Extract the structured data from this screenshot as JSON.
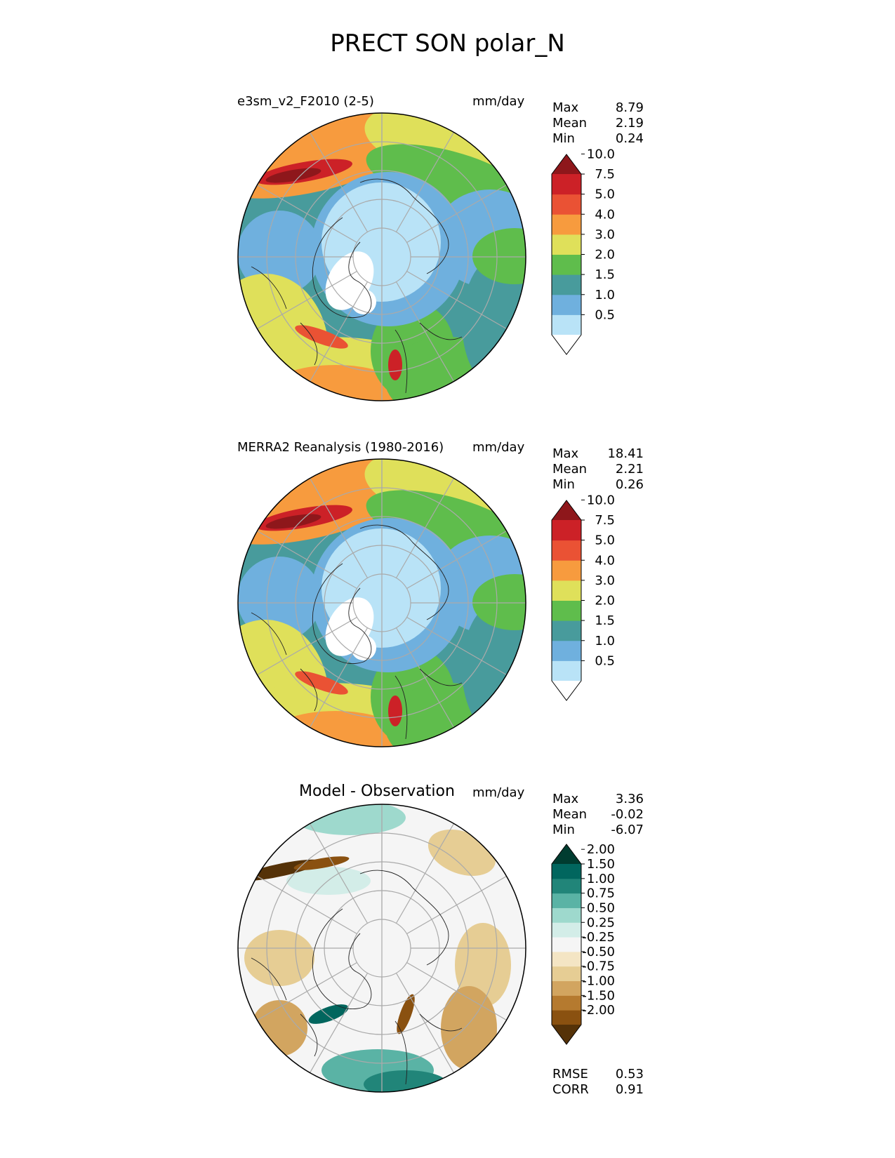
{
  "title": "PRECT SON polar_N",
  "panels": [
    {
      "id": "test",
      "label": "e3sm_v2_F2010 (2-5)",
      "units": "mm/day",
      "stats": [
        {
          "name": "Max",
          "value": "8.79"
        },
        {
          "name": "Mean",
          "value": "2.19"
        },
        {
          "name": "Min",
          "value": "0.24"
        }
      ],
      "colorbar": {
        "colors": [
          "#ffffff",
          "#b9e3f7",
          "#6fb0de",
          "#489b9c",
          "#5fbd4c",
          "#dfe05a",
          "#f79b3e",
          "#ea5234",
          "#cc2127",
          "#8e171b"
        ],
        "ticks": [
          "0.5",
          "1.0",
          "1.5",
          "2.0",
          "3.0",
          "4.0",
          "5.0",
          "7.5",
          "10.0"
        ]
      }
    },
    {
      "id": "ref",
      "label": "MERRA2 Reanalysis (1980-2016)",
      "units": "mm/day",
      "stats": [
        {
          "name": "Max",
          "value": "18.41"
        },
        {
          "name": "Mean",
          "value": "2.21"
        },
        {
          "name": "Min",
          "value": "0.26"
        }
      ],
      "colorbar": {
        "colors": [
          "#ffffff",
          "#b9e3f7",
          "#6fb0de",
          "#489b9c",
          "#5fbd4c",
          "#dfe05a",
          "#f79b3e",
          "#ea5234",
          "#cc2127",
          "#8e171b"
        ],
        "ticks": [
          "0.5",
          "1.0",
          "1.5",
          "2.0",
          "3.0",
          "4.0",
          "5.0",
          "7.5",
          "10.0"
        ]
      }
    },
    {
      "id": "diff",
      "label": "Model - Observation",
      "units": "mm/day",
      "stats": [
        {
          "name": "Max",
          "value": "3.36"
        },
        {
          "name": "Mean",
          "value": "-0.02"
        },
        {
          "name": "Min",
          "value": "-6.07"
        }
      ],
      "colorbar": {
        "colors": [
          "#553208",
          "#8a5110",
          "#b57a2f",
          "#d2a560",
          "#e6cd94",
          "#f4e5c4",
          "#f5f5f5",
          "#d3ede8",
          "#9ed9cd",
          "#5ab3a5",
          "#218579",
          "#01665e",
          "#003c30"
        ],
        "ticks": [
          "-2.00",
          "-1.50",
          "-1.00",
          "-0.75",
          "-0.50",
          "-0.25",
          "0.25",
          "0.50",
          "0.75",
          "1.00",
          "1.50",
          "2.00"
        ]
      },
      "metrics": [
        {
          "name": "RMSE",
          "value": "0.53"
        },
        {
          "name": "CORR",
          "value": "0.91"
        }
      ]
    }
  ]
}
